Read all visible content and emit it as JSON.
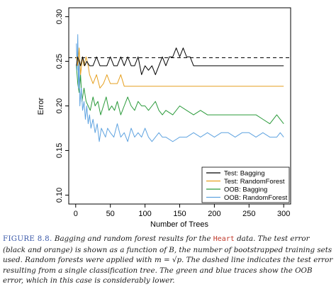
{
  "chart_data": {
    "type": "line",
    "title": "",
    "xlabel": "Number of Trees",
    "ylabel": "Error",
    "xlim": [
      -10,
      310
    ],
    "ylim": [
      0.09,
      0.31
    ],
    "xticks": [
      0,
      50,
      100,
      150,
      200,
      250,
      300
    ],
    "yticks": [
      0.1,
      0.15,
      0.2,
      0.25,
      0.3
    ],
    "ytick_labels": [
      "0.10",
      "0.15",
      "0.20",
      "0.25",
      "0.30"
    ],
    "grid": false,
    "legend_position": "bottom-right",
    "reference_line": {
      "y": 0.254,
      "style": "dashed",
      "color": "#000000"
    },
    "series": [
      {
        "name": "Test: Bagging",
        "color": "#000000",
        "x": [
          1,
          3,
          5,
          7,
          10,
          13,
          16,
          20,
          25,
          30,
          35,
          40,
          45,
          50,
          55,
          60,
          65,
          70,
          75,
          80,
          85,
          90,
          95,
          100,
          105,
          110,
          115,
          120,
          125,
          130,
          135,
          140,
          145,
          150,
          155,
          160,
          165,
          170,
          175,
          200,
          250,
          300
        ],
        "y": [
          0.245,
          0.255,
          0.25,
          0.245,
          0.255,
          0.245,
          0.25,
          0.245,
          0.245,
          0.255,
          0.245,
          0.245,
          0.245,
          0.255,
          0.245,
          0.245,
          0.255,
          0.245,
          0.255,
          0.245,
          0.245,
          0.255,
          0.235,
          0.245,
          0.24,
          0.245,
          0.235,
          0.245,
          0.255,
          0.245,
          0.255,
          0.255,
          0.265,
          0.255,
          0.265,
          0.255,
          0.255,
          0.245,
          0.245,
          0.245,
          0.245,
          0.245
        ]
      },
      {
        "name": "Test: RandomForest",
        "color": "#e6a020",
        "x": [
          1,
          3,
          5,
          7,
          10,
          12,
          15,
          18,
          20,
          25,
          30,
          35,
          40,
          45,
          50,
          55,
          60,
          65,
          70,
          75,
          80,
          100,
          150,
          200,
          250,
          300
        ],
        "y": [
          0.255,
          0.245,
          0.265,
          0.235,
          0.255,
          0.245,
          0.255,
          0.245,
          0.235,
          0.225,
          0.235,
          0.22,
          0.225,
          0.235,
          0.225,
          0.225,
          0.225,
          0.235,
          0.222,
          0.222,
          0.222,
          0.222,
          0.222,
          0.222,
          0.222,
          0.222
        ]
      },
      {
        "name": "OOB: Bagging",
        "color": "#2a9a3a",
        "x": [
          1,
          3,
          5,
          7,
          9,
          12,
          15,
          18,
          21,
          25,
          28,
          32,
          36,
          40,
          44,
          48,
          52,
          56,
          60,
          65,
          70,
          75,
          80,
          85,
          90,
          95,
          100,
          105,
          110,
          115,
          120,
          125,
          130,
          140,
          150,
          160,
          170,
          180,
          190,
          200,
          210,
          220,
          230,
          240,
          250,
          260,
          270,
          280,
          290,
          295,
          300
        ],
        "y": [
          0.245,
          0.225,
          0.215,
          0.235,
          0.205,
          0.22,
          0.205,
          0.2,
          0.195,
          0.21,
          0.2,
          0.205,
          0.19,
          0.2,
          0.21,
          0.195,
          0.2,
          0.195,
          0.205,
          0.19,
          0.2,
          0.21,
          0.2,
          0.195,
          0.205,
          0.2,
          0.2,
          0.195,
          0.2,
          0.205,
          0.195,
          0.19,
          0.195,
          0.19,
          0.2,
          0.195,
          0.19,
          0.195,
          0.19,
          0.19,
          0.19,
          0.19,
          0.19,
          0.19,
          0.19,
          0.19,
          0.185,
          0.18,
          0.19,
          0.185,
          0.18
        ]
      },
      {
        "name": "OOB: RandomForest",
        "color": "#5fa3e0",
        "x": [
          1,
          2,
          3,
          4,
          5,
          6,
          8,
          10,
          12,
          14,
          16,
          18,
          20,
          22,
          25,
          28,
          31,
          34,
          37,
          40,
          43,
          46,
          50,
          55,
          60,
          65,
          70,
          75,
          80,
          85,
          90,
          95,
          100,
          105,
          110,
          115,
          120,
          125,
          130,
          140,
          150,
          160,
          170,
          180,
          190,
          200,
          210,
          220,
          230,
          240,
          250,
          260,
          270,
          280,
          290,
          295,
          300
        ],
        "y": [
          0.27,
          0.24,
          0.28,
          0.22,
          0.25,
          0.2,
          0.22,
          0.195,
          0.205,
          0.185,
          0.2,
          0.18,
          0.19,
          0.175,
          0.185,
          0.17,
          0.18,
          0.16,
          0.175,
          0.17,
          0.165,
          0.175,
          0.17,
          0.165,
          0.18,
          0.165,
          0.17,
          0.16,
          0.175,
          0.165,
          0.17,
          0.165,
          0.175,
          0.165,
          0.16,
          0.165,
          0.17,
          0.165,
          0.165,
          0.16,
          0.165,
          0.165,
          0.17,
          0.165,
          0.17,
          0.165,
          0.17,
          0.17,
          0.165,
          0.17,
          0.17,
          0.165,
          0.17,
          0.165,
          0.165,
          0.17,
          0.165
        ]
      }
    ]
  },
  "caption": {
    "label": "FIGURE 8.8.",
    "text_before": " Bagging and random forest results for the ",
    "dataset": "Heart",
    "text_after": " data. The test error (black and orange) is shown as a function of B, the number of bootstrapped training sets used. Random forests were applied with m = √p. The dashed line indicates the test error resulting from a single classification tree. The green and blue traces show the OOB error, which in this case is considerably lower."
  }
}
